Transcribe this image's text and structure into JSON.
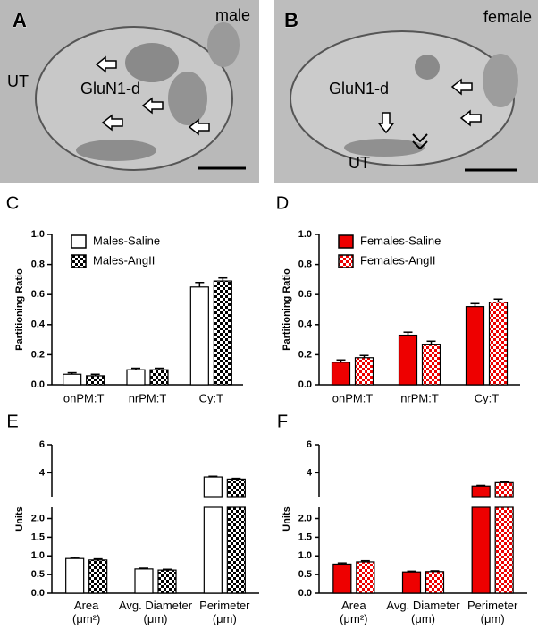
{
  "micrographs": [
    {
      "letter": "A",
      "sex": "male",
      "labels": [
        "UT",
        "GluN1-d"
      ]
    },
    {
      "letter": "B",
      "sex": "female",
      "labels": [
        "GluN1-d",
        "UT"
      ]
    }
  ],
  "chart_data": [
    {
      "type": "bar",
      "panel": "C",
      "ylabel": "Partitioning Ratio",
      "categories": [
        "onPM:T",
        "nrPM:T",
        "Cy:T"
      ],
      "series": [
        {
          "name": "Males-Saline",
          "color": "#ffffff",
          "values": [
            0.07,
            0.1,
            0.65
          ],
          "errors": [
            0.01,
            0.01,
            0.03
          ]
        },
        {
          "name": "Males-AngII",
          "color": "#000000",
          "pattern": "checker",
          "values": [
            0.06,
            0.1,
            0.69
          ],
          "errors": [
            0.01,
            0.01,
            0.02
          ]
        }
      ],
      "ylim": [
        0,
        1
      ],
      "yticks": [
        {
          "value": 0,
          "label": "0.0"
        },
        0.2,
        0.4,
        0.6,
        0.8,
        {
          "value": 1,
          "label": "1.0"
        }
      ],
      "legend": "upper left"
    },
    {
      "type": "bar",
      "panel": "D",
      "ylabel": "Partitioning Ratio",
      "categories": [
        "onPM:T",
        "nrPM:T",
        "Cy:T"
      ],
      "series": [
        {
          "name": "Females-Saline",
          "color": "#ee0000",
          "values": [
            0.15,
            0.33,
            0.52
          ],
          "errors": [
            0.015,
            0.02,
            0.02
          ]
        },
        {
          "name": "Females-AngII",
          "color": "#ee0000",
          "pattern": "checker",
          "values": [
            0.18,
            0.27,
            0.55
          ],
          "errors": [
            0.015,
            0.02,
            0.02
          ]
        }
      ],
      "ylim": [
        0,
        1
      ],
      "yticks": [
        {
          "value": 0,
          "label": "0.0"
        },
        0.2,
        0.4,
        0.6,
        0.8,
        {
          "value": 1,
          "label": "1.0"
        }
      ],
      "legend": "upper left"
    },
    {
      "type": "bar",
      "panel": "E",
      "ylabel": "Units",
      "categories": [
        "Area\n(μm²)",
        "Avg. Diameter\n(μm)",
        "Perimeter\n(μm)"
      ],
      "series": [
        {
          "name": "Males-Saline",
          "color": "#ffffff",
          "values": [
            0.93,
            0.65,
            3.7
          ],
          "errors": [
            0.03,
            0.02,
            0.05
          ]
        },
        {
          "name": "Males-AngII",
          "color": "#000000",
          "pattern": "checker",
          "values": [
            0.89,
            0.62,
            3.55
          ],
          "errors": [
            0.03,
            0.02,
            0.05
          ]
        }
      ],
      "ylim": [
        0,
        6
      ],
      "ybreak": 2.3,
      "yticks": [
        {
          "value": 0,
          "label": "0.0"
        },
        0.5,
        {
          "value": 1,
          "label": "1.0"
        },
        1.5,
        {
          "value": 2,
          "label": "2.0"
        },
        4,
        6
      ]
    },
    {
      "type": "bar",
      "panel": "F",
      "ylabel": "Units",
      "categories": [
        "Area\n(μm²)",
        "Avg. Diameter\n(μm)",
        "Perimeter\n(μm)"
      ],
      "series": [
        {
          "name": "Females-Saline",
          "color": "#ee0000",
          "values": [
            0.78,
            0.57,
            3.05
          ],
          "errors": [
            0.03,
            0.02,
            0.05
          ]
        },
        {
          "name": "Females-AngII",
          "color": "#ee0000",
          "pattern": "checker",
          "values": [
            0.84,
            0.58,
            3.3
          ],
          "errors": [
            0.03,
            0.02,
            0.05
          ]
        }
      ],
      "ylim": [
        0,
        6
      ],
      "ybreak": 2.3,
      "yticks": [
        {
          "value": 0,
          "label": "0.0"
        },
        0.5,
        {
          "value": 1,
          "label": "1.0"
        },
        1.5,
        {
          "value": 2,
          "label": "2.0"
        },
        4,
        6
      ]
    }
  ]
}
